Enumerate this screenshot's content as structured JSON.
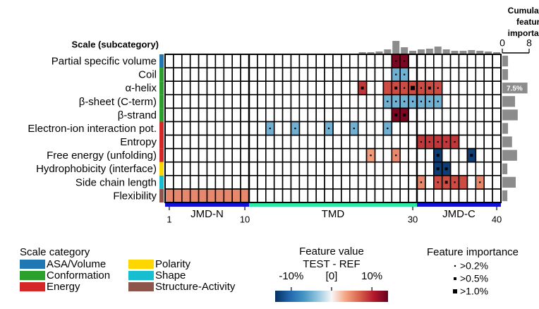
{
  "chart_data": {
    "type": "heatmap",
    "title": "Scale (subcategory)",
    "rows": [
      "Partial specific volume",
      "Coil",
      "α-helix",
      "β-sheet (C-term)",
      "β-strand",
      "Electron-ion interaction pot.",
      "Entropy",
      "Free energy (unfolding)",
      "Hydrophobicity (interface)",
      "Side chain length",
      "Flexibility"
    ],
    "row_category": [
      0,
      1,
      1,
      1,
      1,
      2,
      2,
      2,
      3,
      4,
      5
    ],
    "legend_title": "Scale category",
    "scale_categories": [
      {
        "name": "ASA/Volume",
        "color": "#1f77b4"
      },
      {
        "name": "Conformation",
        "color": "#2ca02c"
      },
      {
        "name": "Energy",
        "color": "#d62728"
      },
      {
        "name": "Polarity",
        "color": "#ffd700"
      },
      {
        "name": "Shape",
        "color": "#17becf"
      },
      {
        "name": "Structure-Activity",
        "color": "#8c564b"
      }
    ],
    "xlim": [
      0.5,
      40.5
    ],
    "xticks": [
      1,
      10,
      30,
      40
    ],
    "regions": [
      {
        "name": "JMD-N",
        "start": 1,
        "end": 10,
        "color": "#1010d8"
      },
      {
        "name": "TMD",
        "start": 11,
        "end": 30,
        "color": "#2ee8a6"
      },
      {
        "name": "JMD-C",
        "start": 31,
        "end": 40,
        "color": "#1010d8"
      }
    ],
    "cells": [
      {
        "row": 0,
        "col": 28,
        "value": 13,
        "importance": 0.3
      },
      {
        "row": 0,
        "col": 29,
        "value": 13,
        "importance": 0.3
      },
      {
        "row": 1,
        "col": 28,
        "value": -5,
        "importance": 0.3
      },
      {
        "row": 1,
        "col": 29,
        "value": -5,
        "importance": 0.3
      },
      {
        "row": 2,
        "col": 24,
        "value": 9,
        "importance": 0.6
      },
      {
        "row": 2,
        "col": 27,
        "value": 8
      },
      {
        "row": 2,
        "col": 28,
        "value": 8,
        "importance": 0.6
      },
      {
        "row": 2,
        "col": 29,
        "value": 8,
        "importance": 0.3
      },
      {
        "row": 2,
        "col": 30,
        "value": 8,
        "importance": 1.2
      },
      {
        "row": 2,
        "col": 31,
        "value": 8,
        "importance": 0.3
      },
      {
        "row": 2,
        "col": 32,
        "value": 8,
        "importance": 0.6
      },
      {
        "row": 2,
        "col": 33,
        "value": 8,
        "importance": 0.3
      },
      {
        "row": 3,
        "col": 27,
        "value": -5,
        "importance": 0.3
      },
      {
        "row": 3,
        "col": 28,
        "value": -5,
        "importance": 0.3
      },
      {
        "row": 3,
        "col": 29,
        "value": -5,
        "importance": 0.3
      },
      {
        "row": 3,
        "col": 30,
        "value": -5,
        "importance": 0.3
      },
      {
        "row": 3,
        "col": 31,
        "value": -5,
        "importance": 0.3
      },
      {
        "row": 3,
        "col": 32,
        "value": -5,
        "importance": 0.3
      },
      {
        "row": 3,
        "col": 33,
        "value": -5,
        "importance": 0.3
      },
      {
        "row": 4,
        "col": 28,
        "value": 13,
        "importance": 0.6
      },
      {
        "row": 4,
        "col": 29,
        "value": 13,
        "importance": 0.6
      },
      {
        "row": 5,
        "col": 13,
        "value": -5,
        "importance": 0.3
      },
      {
        "row": 5,
        "col": 16,
        "value": -5,
        "importance": 0.3
      },
      {
        "row": 5,
        "col": 20,
        "value": -5,
        "importance": 0.3
      },
      {
        "row": 5,
        "col": 23,
        "value": -5,
        "importance": 0.3
      },
      {
        "row": 5,
        "col": 27,
        "value": -5,
        "importance": 0.3
      },
      {
        "row": 6,
        "col": 31,
        "value": 9,
        "importance": 0.3
      },
      {
        "row": 6,
        "col": 32,
        "value": 9,
        "importance": 0.3
      },
      {
        "row": 6,
        "col": 33,
        "value": 9,
        "importance": 0.3
      },
      {
        "row": 6,
        "col": 34,
        "value": 9,
        "importance": 0.3
      },
      {
        "row": 6,
        "col": 35,
        "value": 9,
        "importance": 0.3
      },
      {
        "row": 7,
        "col": 25,
        "value": 4,
        "importance": 0.3
      },
      {
        "row": 7,
        "col": 28,
        "value": 5,
        "importance": 0.3
      },
      {
        "row": 7,
        "col": 33,
        "value": -13,
        "importance": 0.6
      },
      {
        "row": 7,
        "col": 37,
        "value": -13,
        "importance": 0.6
      },
      {
        "row": 8,
        "col": 33,
        "value": -13,
        "importance": 0.6
      },
      {
        "row": 8,
        "col": 34,
        "value": -13,
        "importance": 0.6
      },
      {
        "row": 9,
        "col": 31,
        "value": 5,
        "importance": 0.3
      },
      {
        "row": 9,
        "col": 33,
        "value": 8,
        "importance": 0.3
      },
      {
        "row": 9,
        "col": 34,
        "value": 8,
        "importance": 0.6
      },
      {
        "row": 9,
        "col": 35,
        "value": 8,
        "importance": 0.3
      },
      {
        "row": 9,
        "col": 36,
        "value": 8
      },
      {
        "row": 9,
        "col": 38,
        "value": 5,
        "importance": 0.3
      },
      {
        "row": 10,
        "col": 1,
        "value": 5
      },
      {
        "row": 10,
        "col": 2,
        "value": 5
      },
      {
        "row": 10,
        "col": 3,
        "value": 5
      },
      {
        "row": 10,
        "col": 4,
        "value": 5
      },
      {
        "row": 10,
        "col": 5,
        "value": 5
      },
      {
        "row": 10,
        "col": 6,
        "value": 5
      },
      {
        "row": 10,
        "col": 7,
        "value": 5
      },
      {
        "row": 10,
        "col": 8,
        "value": 5
      },
      {
        "row": 10,
        "col": 9,
        "value": 5
      },
      {
        "row": 10,
        "col": 10,
        "value": 5
      }
    ],
    "colorbar_title": "Feature value",
    "colorbar_subtitle": "TEST - REF",
    "clim": [
      -14,
      14
    ],
    "cticks": [
      {
        "value": -10,
        "label": "-10%"
      },
      {
        "value": 0,
        "label": "[0]"
      },
      {
        "value": 10,
        "label": "10%"
      }
    ],
    "colormap": [
      "#053061",
      "#2166ac",
      "#4393c3",
      "#92c5de",
      "#f7f7f7",
      "#f4a582",
      "#d6604d",
      "#b2182b",
      "#67001f"
    ],
    "importance_title": "Feature importance",
    "importance_levels": [
      {
        "value": 0.2,
        "label": ">0.2%"
      },
      {
        "value": 0.5,
        "label": ">0.5%"
      },
      {
        "value": 1.0,
        "label": ">1.0%"
      }
    ],
    "position_importance": {
      "values": [
        0,
        0,
        0,
        0,
        0,
        0,
        0,
        0,
        0,
        0,
        0,
        0,
        0,
        0,
        0,
        0,
        0,
        0,
        0,
        0,
        0,
        0,
        0,
        0.8,
        0.8,
        1.2,
        2.4,
        7.2,
        3.6,
        1.6,
        2.4,
        2.8,
        4,
        2.4,
        1.6,
        1.6,
        2,
        1.6,
        1.2,
        0.8
      ],
      "ylim": [
        0,
        8
      ],
      "color": "#8c8c8c"
    },
    "scale_importance": {
      "title": [
        "Cumulative",
        "feature",
        "importance"
      ],
      "values": [
        1.7,
        1.7,
        7.5,
        3.8,
        4.6,
        1.7,
        2.9,
        4.4,
        1.5,
        4,
        1.5
      ],
      "value_labels": [
        null,
        null,
        "7.5%",
        null,
        null,
        null,
        null,
        null,
        null,
        null,
        null
      ],
      "xlim": [
        0,
        8
      ],
      "xticks": [
        0,
        8
      ],
      "color": "#8c8c8c"
    }
  }
}
